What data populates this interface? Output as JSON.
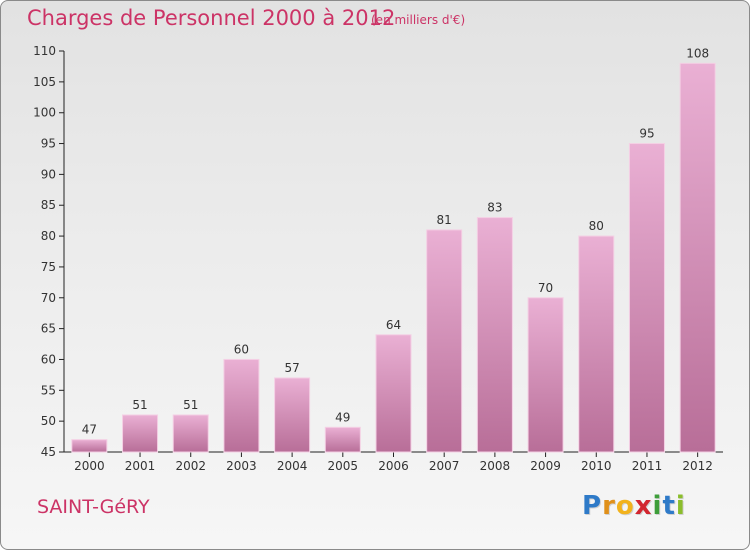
{
  "header": {
    "title": "Charges de Personnel 2000 à 2012",
    "subtitle": "(en milliers d'€)"
  },
  "footer": {
    "place": "SAINT-GéRY",
    "logo_letters": [
      {
        "char": "P",
        "color": "#2e7ac8"
      },
      {
        "char": "r",
        "color": "#e0901a"
      },
      {
        "char": "o",
        "color": "#f2b21c"
      },
      {
        "char": "x",
        "color": "#d2262f"
      },
      {
        "char": "i",
        "color": "#3e9e3a"
      },
      {
        "char": "t",
        "color": "#2e7ac8"
      },
      {
        "char": "i",
        "color": "#8bbd2c"
      }
    ]
  },
  "chart_data": {
    "type": "bar",
    "title": "Charges de Personnel 2000 à 2012",
    "subtitle": "(en milliers d'€)",
    "categories": [
      "2000",
      "2001",
      "2002",
      "2003",
      "2004",
      "2005",
      "2006",
      "2007",
      "2008",
      "2009",
      "2010",
      "2011",
      "2012"
    ],
    "values": [
      47,
      51,
      51,
      60,
      57,
      49,
      64,
      81,
      83,
      70,
      80,
      95,
      108
    ],
    "ylim": [
      45,
      110
    ],
    "yticks": [
      45,
      50,
      55,
      60,
      65,
      70,
      75,
      80,
      85,
      90,
      95,
      100,
      105,
      110
    ],
    "grid": false,
    "legend": "none",
    "colors": {
      "bar_top": "#eab0d4",
      "bar_bottom": "#b86e98",
      "axis": "#222222",
      "text": "#333333"
    }
  }
}
